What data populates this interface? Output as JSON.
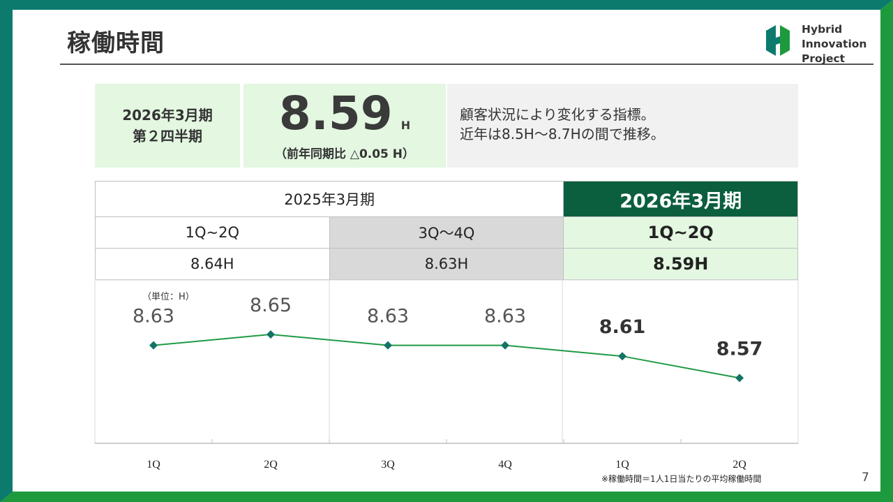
{
  "page": {
    "title": "稼働時間",
    "page_number": "7"
  },
  "logo": {
    "line1": "Hybrid",
    "line2": "Innovation",
    "line3": "Project"
  },
  "summary": {
    "period_line1": "2026年3月期",
    "period_line2": "第２四半期",
    "value": "8.59",
    "unit": "H",
    "yoy": "（前年同期比 △0.05 H）",
    "desc_line1": "顧客状況により変化する指標。",
    "desc_line2": "近年は8.5H～8.7Hの間で推移。"
  },
  "table": {
    "fy2025": "2025年3月期",
    "fy2026": "2026年3月期",
    "h1_2025": "1Q~2Q",
    "h2_2025": "3Q～4Q",
    "h1_2026": "1Q~2Q",
    "v_h1_2025": "8.64H",
    "v_h2_2025": "8.63H",
    "v_h1_2026": "8.59H"
  },
  "colors": {
    "line": "#1f9a45",
    "marker": "#137364",
    "dark_green": "#0b5e3e",
    "light_green": "#e3f7e1",
    "frame": "#0d7a6e",
    "frame_accent": "#1e9a3e"
  },
  "chart_data": {
    "type": "line",
    "unit_label": "（単位：H）",
    "categories": [
      "1Q",
      "2Q",
      "3Q",
      "4Q",
      "1Q",
      "2Q"
    ],
    "series": [
      {
        "name": "稼働時間",
        "values": [
          8.63,
          8.65,
          8.63,
          8.63,
          8.61,
          8.57
        ]
      }
    ],
    "data_labels": [
      "8.63",
      "8.65",
      "8.63",
      "8.63",
      "8.61",
      "8.57"
    ],
    "highlight_from_index": 4,
    "ylim": [
      8.45,
      8.75
    ],
    "grid": false
  },
  "footnote": "※稼働時間＝1人1日当たりの平均稼働時間"
}
